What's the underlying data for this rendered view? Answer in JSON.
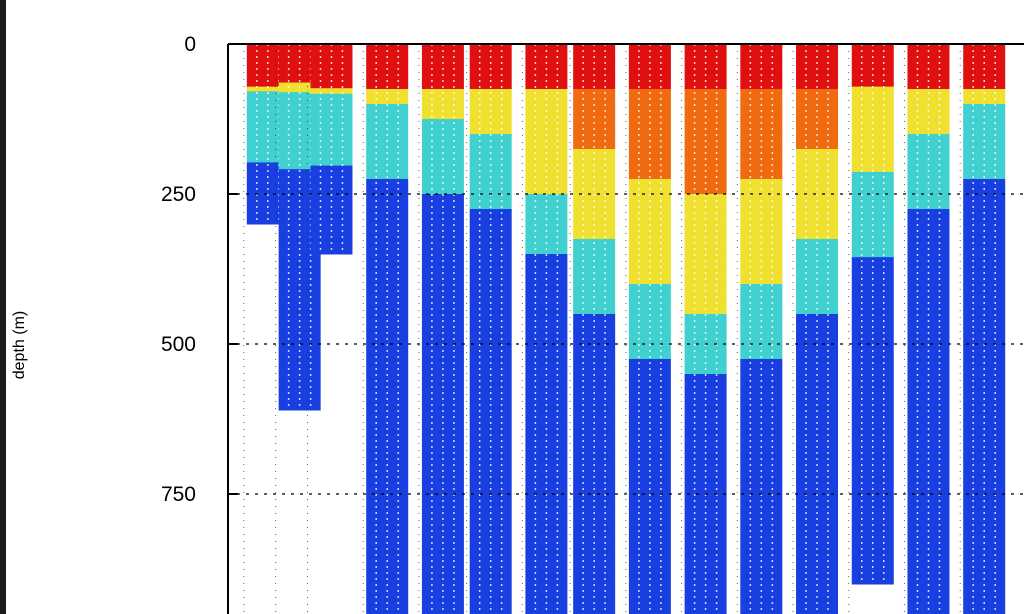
{
  "chart_data": {
    "type": "scatter",
    "title": "",
    "xlabel": "",
    "ylabel": "depth (m)",
    "y_axis_inverted": true,
    "ylim": [
      0,
      950
    ],
    "yticks": [
      0,
      250,
      500,
      750
    ],
    "ytick_labels": [
      "0",
      "250",
      "500",
      "750"
    ],
    "grid": "dotted",
    "colormap": "jet",
    "colors": {
      "background": "#ffffff",
      "surface_layer": "#e01010",
      "warm_core": "#f06a10",
      "thermocline": "#f0e030",
      "mid": "#40d0d0",
      "deep": "#1a3fe0"
    },
    "profiles": [
      {
        "x": 0.05,
        "max_depth": 300,
        "top_color": "#e01010"
      },
      {
        "x": 0.09,
        "max_depth": 610,
        "top_color": "#e01010"
      },
      {
        "x": 0.13,
        "max_depth": 350,
        "top_color": "#e01010"
      },
      {
        "x": 0.2,
        "max_depth": 950,
        "top_color": "#e01010"
      },
      {
        "x": 0.27,
        "max_depth": 950,
        "top_color": "#e01010"
      },
      {
        "x": 0.33,
        "max_depth": 950,
        "top_color": "#e01010"
      },
      {
        "x": 0.4,
        "max_depth": 950,
        "top_color": "#e01010"
      },
      {
        "x": 0.46,
        "max_depth": 950,
        "top_color": "#e01010"
      },
      {
        "x": 0.53,
        "max_depth": 950,
        "top_color": "#e01010"
      },
      {
        "x": 0.6,
        "max_depth": 950,
        "top_color": "#e01010"
      },
      {
        "x": 0.67,
        "max_depth": 950,
        "top_color": "#e01010"
      },
      {
        "x": 0.74,
        "max_depth": 950,
        "top_color": "#e01010"
      },
      {
        "x": 0.81,
        "max_depth": 900,
        "top_color": "#e01010"
      },
      {
        "x": 0.88,
        "max_depth": 950,
        "top_color": "#e01010"
      },
      {
        "x": 0.95,
        "max_depth": 950,
        "top_color": "#e01010"
      }
    ]
  }
}
